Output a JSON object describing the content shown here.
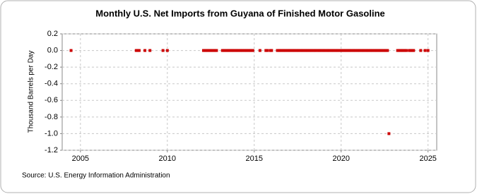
{
  "chart_data": {
    "type": "scatter",
    "title": "Monthly U.S. Net Imports from Guyana of Finished Motor Gasoline",
    "y_label": "Thousand Barrels per Day",
    "source": "Source: U.S. Energy Information Administration",
    "xlim": [
      2003.95,
      2025.5
    ],
    "ylim": [
      -1.2,
      0.2
    ],
    "xticks": [
      2005,
      2010,
      2015,
      2020,
      2025
    ],
    "yticks": [
      0.2,
      {
        "value": 0,
        "label": "0.0"
      },
      -0.2,
      -0.4,
      -0.6,
      -0.8,
      {
        "value": -1,
        "label": "-1.0"
      },
      -1.2
    ],
    "grid": true,
    "series": [
      {
        "color": "#cc0000",
        "x": [
          2004.46,
          2008.21,
          2008.29,
          2008.38,
          2008.71,
          2009.0,
          2009.75,
          2010.0,
          2012.08,
          2012.17,
          2012.25,
          2012.33,
          2012.42,
          2012.5,
          2012.58,
          2012.67,
          2012.75,
          2012.83,
          2013.17,
          2013.25,
          2013.33,
          2013.42,
          2013.5,
          2013.58,
          2013.67,
          2013.75,
          2013.83,
          2013.92,
          2014.0,
          2014.08,
          2014.17,
          2014.25,
          2014.33,
          2014.42,
          2014.5,
          2014.58,
          2014.67,
          2014.75,
          2014.83,
          2014.92,
          2015.33,
          2015.67,
          2015.75,
          2015.92,
          2016.0,
          2016.33,
          2016.42,
          2016.5,
          2016.58,
          2016.67,
          2016.75,
          2016.83,
          2016.92,
          2017.0,
          2017.08,
          2017.17,
          2017.25,
          2017.33,
          2017.42,
          2017.5,
          2017.58,
          2017.67,
          2017.75,
          2017.83,
          2017.92,
          2018.0,
          2018.08,
          2018.17,
          2018.25,
          2018.33,
          2018.42,
          2018.5,
          2018.58,
          2018.67,
          2018.75,
          2018.83,
          2018.92,
          2019.0,
          2019.08,
          2019.17,
          2019.25,
          2019.33,
          2019.42,
          2019.5,
          2019.58,
          2019.67,
          2019.75,
          2019.83,
          2019.92,
          2020.0,
          2020.08,
          2020.17,
          2020.25,
          2020.33,
          2020.42,
          2020.5,
          2020.58,
          2020.67,
          2020.75,
          2020.83,
          2020.92,
          2021.0,
          2021.08,
          2021.17,
          2021.25,
          2021.33,
          2021.42,
          2021.5,
          2021.58,
          2021.67,
          2021.75,
          2021.83,
          2021.92,
          2022.0,
          2022.08,
          2022.17,
          2022.25,
          2022.33,
          2022.42,
          2022.5,
          2022.58,
          2022.67,
          2022.75,
          2023.25,
          2023.33,
          2023.42,
          2023.5,
          2023.58,
          2023.67,
          2023.75,
          2023.92,
          2024.0,
          2024.08,
          2024.17,
          2024.58,
          2024.83,
          2025.0
        ],
        "values": [
          0,
          0,
          0,
          0,
          0,
          0,
          0,
          0,
          0,
          0,
          0,
          0,
          0,
          0,
          0,
          0,
          0,
          0,
          0,
          0,
          0,
          0,
          0,
          0,
          0,
          0,
          0,
          0,
          0,
          0,
          0,
          0,
          0,
          0,
          0,
          0,
          0,
          0,
          0,
          0,
          0,
          0,
          0,
          0,
          0,
          0,
          0,
          0,
          0,
          0,
          0,
          0,
          0,
          0,
          0,
          0,
          0,
          0,
          0,
          0,
          0,
          0,
          0,
          0,
          0,
          0,
          0,
          0,
          0,
          0,
          0,
          0,
          0,
          0,
          0,
          0,
          0,
          0,
          0,
          0,
          0,
          0,
          0,
          0,
          0,
          0,
          0,
          0,
          0,
          0,
          0,
          0,
          0,
          0,
          0,
          0,
          0,
          0,
          0,
          0,
          0,
          0,
          0,
          0,
          0,
          0,
          0,
          0,
          0,
          0,
          0,
          0,
          0,
          0,
          0,
          0,
          0,
          0,
          0,
          0,
          0,
          0,
          -1,
          0,
          0,
          0,
          0,
          0,
          0,
          0,
          0,
          0,
          0,
          0,
          0,
          0,
          0
        ]
      }
    ]
  }
}
